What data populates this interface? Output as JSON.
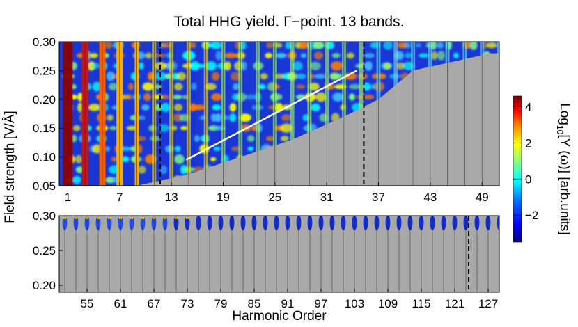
{
  "chart_data": [
    {
      "type": "heatmap",
      "title": "Total HHG yield. Γ−point. 13 bands.",
      "ylabel": "Field strength [V/Å]",
      "xlabel": "",
      "xlim": [
        0,
        51
      ],
      "ylim": [
        0.05,
        0.3
      ],
      "x_ticks": [
        1,
        7,
        13,
        19,
        25,
        31,
        37,
        43,
        49
      ],
      "x_tick_labels": [
        "1",
        "7",
        "13",
        "19",
        "25",
        "31",
        "37",
        "43",
        "49"
      ],
      "y_ticks": [
        0.05,
        0.1,
        0.15,
        0.2,
        0.25,
        0.3
      ],
      "y_tick_labels": [
        "0.05",
        "0.10",
        "0.15",
        "0.20",
        "0.25",
        "0.30"
      ],
      "dashed_vertical_lines_x": [
        11.7,
        35.3
      ],
      "white_line": {
        "from": [
          14.7,
          0.095
        ],
        "to": [
          34.5,
          0.25
        ]
      },
      "harmonic_peaks_odd": [
        1,
        3,
        5,
        7,
        9,
        11,
        13,
        15,
        17,
        19,
        21,
        23,
        25,
        27,
        29,
        31,
        33,
        35,
        37,
        39,
        41,
        43,
        45,
        47,
        49,
        51
      ],
      "cutoff_fit": {
        "harmonic_order": [
          9,
          15,
          21,
          27,
          33,
          37,
          41,
          50
        ],
        "field_strength": [
          0.05,
          0.07,
          0.1,
          0.13,
          0.17,
          0.2,
          0.25,
          0.28
        ]
      },
      "grid": false
    },
    {
      "type": "heatmap",
      "xlabel": "Harmonic Order",
      "ylabel": "",
      "xlim": [
        50,
        129
      ],
      "ylim": [
        0.19,
        0.3
      ],
      "x_ticks": [
        55,
        61,
        67,
        73,
        79,
        85,
        91,
        97,
        103,
        109,
        115,
        121,
        127
      ],
      "x_tick_labels": [
        "55",
        "61",
        "67",
        "73",
        "79",
        "85",
        "91",
        "97",
        "103",
        "109",
        "115",
        "121",
        "127"
      ],
      "y_ticks": [
        0.2,
        0.25,
        0.3
      ],
      "y_tick_labels": [
        "0.20",
        "0.25",
        "0.30"
      ],
      "dashed_vertical_lines_x": [
        123.5
      ],
      "signal_band": [
        0.28,
        0.3
      ],
      "grid": false
    }
  ],
  "colorbar": {
    "label_prefix": "Log",
    "label_sub": "10",
    "label_rest": "[Y (ω)] [arb.units]",
    "ticks": [
      4,
      2,
      0,
      -2
    ],
    "tick_labels": [
      "4",
      "2",
      "0",
      "−2"
    ],
    "range": [
      -3.5,
      4.6
    ],
    "colormap": [
      "#00007f",
      "#0000ff",
      "#0080ff",
      "#00ffff",
      "#80ff80",
      "#ffff00",
      "#ff8000",
      "#ff0000",
      "#7f0000"
    ]
  },
  "shared_ylabel": "Field strength [V/Å]",
  "colors": {
    "background_gray": "#a8a8a8",
    "harmonic_lines": "#222222",
    "dashed": "#000000",
    "white_line": "#ffffff"
  }
}
